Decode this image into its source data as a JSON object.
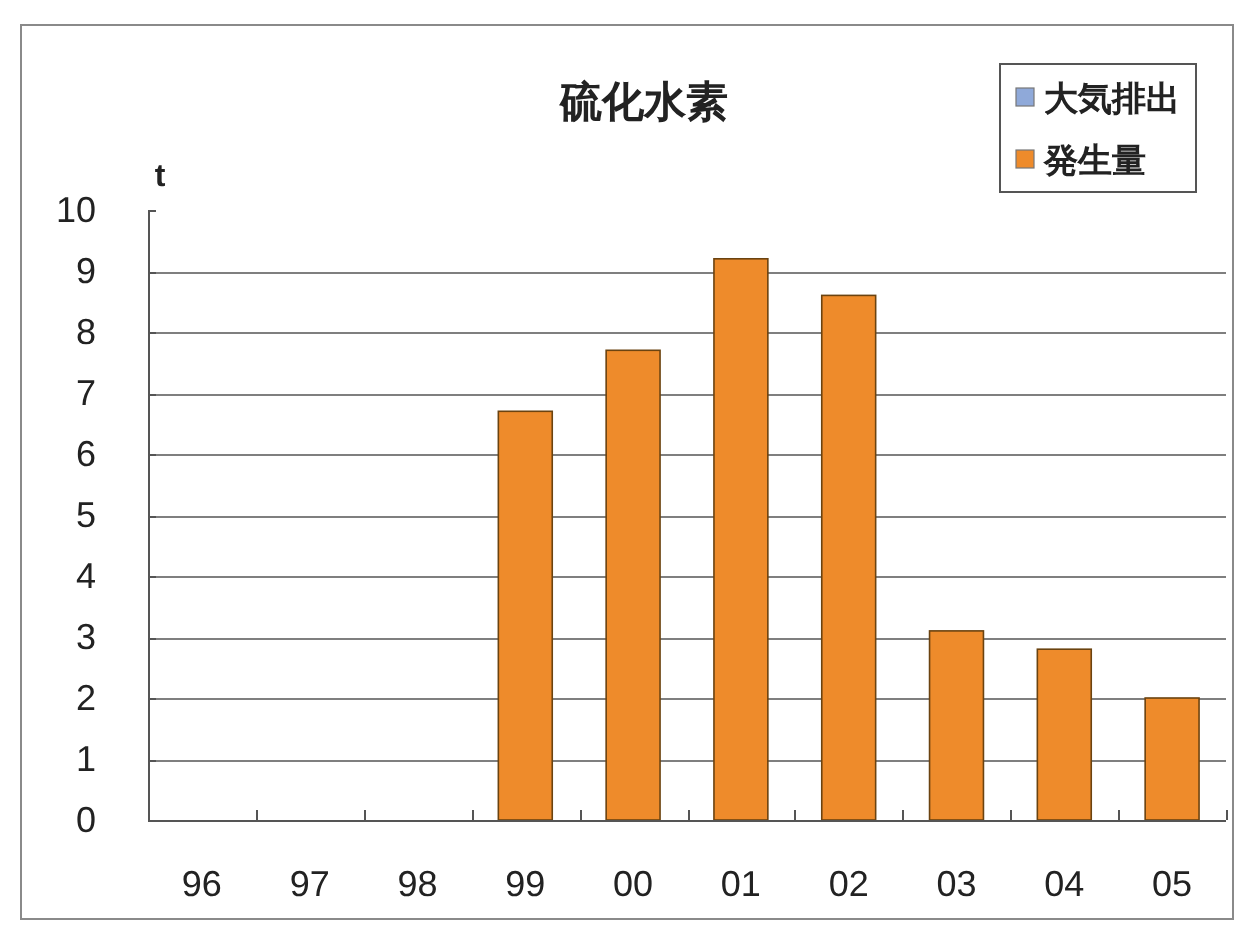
{
  "chart_data": {
    "type": "bar",
    "title": "硫化水素",
    "ylabel": "t",
    "categories": [
      "96",
      "97",
      "98",
      "99",
      "00",
      "01",
      "02",
      "03",
      "04",
      "05"
    ],
    "series": [
      {
        "name": "大気排出",
        "color": "#8fa9d9",
        "values": [
          null,
          null,
          null,
          null,
          null,
          null,
          null,
          null,
          null,
          null
        ]
      },
      {
        "name": "発生量",
        "color": "#ee8b2b",
        "values": [
          null,
          null,
          null,
          6.7,
          7.7,
          9.2,
          8.6,
          3.1,
          2.8,
          2.0
        ]
      }
    ],
    "ylim": [
      0,
      10
    ],
    "yticks": [
      0,
      1,
      2,
      3,
      4,
      5,
      6,
      7,
      8,
      9,
      10
    ],
    "grid": "y",
    "legend": "top right"
  }
}
